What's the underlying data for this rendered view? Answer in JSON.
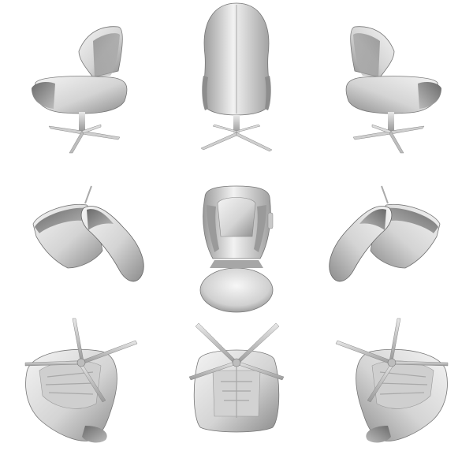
{
  "figure": {
    "views": [
      {
        "id": "side-left-view",
        "label": ""
      },
      {
        "id": "back-view",
        "label": ""
      },
      {
        "id": "side-right-view",
        "label": ""
      },
      {
        "id": "tilt-left-view",
        "label": ""
      },
      {
        "id": "top-view",
        "label": ""
      },
      {
        "id": "tilt-right-view",
        "label": ""
      },
      {
        "id": "bottom-left-view",
        "label": ""
      },
      {
        "id": "bottom-view",
        "label": ""
      },
      {
        "id": "bottom-right-view",
        "label": ""
      }
    ],
    "colors": {
      "background": "#ffffff",
      "surface_light": "#ececec",
      "surface_mid": "#c8c8c8",
      "surface_dark": "#8a8a8a",
      "shadow": "#555555"
    }
  }
}
